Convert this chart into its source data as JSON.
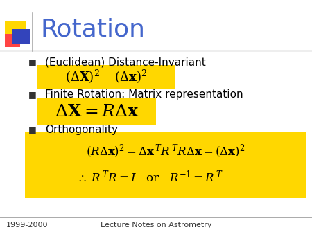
{
  "title": "Rotation",
  "title_color": "#4466cc",
  "title_fontsize": 26,
  "bg_color": "#ffffff",
  "bullet_color": "#333333",
  "bullet_char": "■",
  "yellow_bg": "#FFD700",
  "text_color": "#000000",
  "footer_left": "1999-2000",
  "footer_center": "Lecture Notes on Astrometry",
  "footer_fontsize": 8,
  "bullet1_text": "(Euclidean) Distance-Invariant",
  "bullet2_text": "Finite Rotation: Matrix representation",
  "bullet3_text": "Orthogonality",
  "accent_yellow": "#FFD700",
  "accent_red": "#FF4444",
  "accent_blue": "#3344BB",
  "line_color": "#aaaaaa"
}
